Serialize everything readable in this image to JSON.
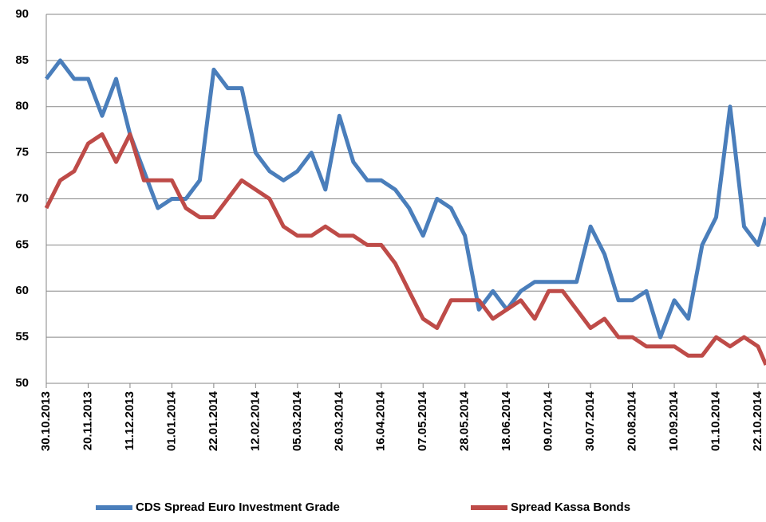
{
  "chart_data": {
    "type": "line",
    "x": [
      "30.10.2013",
      "06.11.2013",
      "13.11.2013",
      "20.11.2013",
      "27.11.2013",
      "04.12.2013",
      "11.12.2013",
      "18.12.2013",
      "25.12.2013",
      "01.01.2014",
      "08.01.2014",
      "15.01.2014",
      "22.01.2014",
      "29.01.2014",
      "05.02.2014",
      "12.02.2014",
      "19.02.2014",
      "26.02.2014",
      "05.03.2014",
      "12.03.2014",
      "19.03.2014",
      "26.03.2014",
      "02.04.2014",
      "09.04.2014",
      "16.04.2014",
      "23.04.2014",
      "30.04.2014",
      "07.05.2014",
      "14.05.2014",
      "21.05.2014",
      "28.05.2014",
      "04.06.2014",
      "11.06.2014",
      "18.06.2014",
      "25.06.2014",
      "02.07.2014",
      "09.07.2014",
      "16.07.2014",
      "23.07.2014",
      "30.07.2014",
      "06.08.2014",
      "13.08.2014",
      "20.08.2014",
      "27.08.2014",
      "03.09.2014",
      "10.09.2014",
      "17.09.2014",
      "24.09.2014",
      "01.10.2014",
      "08.10.2014",
      "15.10.2014",
      "22.10.2014",
      "26.10.2014"
    ],
    "series": [
      {
        "name": "CDS Spread Euro Investment Grade",
        "color": "#4a7ebb",
        "values": [
          83,
          85,
          83,
          83,
          79,
          83,
          77,
          73,
          69,
          70,
          70,
          72,
          84,
          82,
          82,
          75,
          73,
          72,
          73,
          75,
          71,
          79,
          74,
          72,
          72,
          71,
          69,
          66,
          70,
          69,
          66,
          58,
          60,
          58,
          60,
          61,
          61,
          61,
          61,
          67,
          64,
          59,
          59,
          60,
          55,
          59,
          57,
          65,
          68,
          80,
          67,
          65,
          68
        ]
      },
      {
        "name": "Spread Kassa Bonds",
        "color": "#be4b48",
        "values": [
          69,
          72,
          73,
          76,
          77,
          74,
          77,
          72,
          72,
          72,
          69,
          68,
          68,
          70,
          72,
          71,
          70,
          67,
          66,
          66,
          67,
          66,
          66,
          65,
          65,
          63,
          60,
          57,
          56,
          59,
          59,
          59,
          57,
          58,
          59,
          57,
          60,
          60,
          58,
          56,
          57,
          55,
          55,
          54,
          54,
          54,
          53,
          53,
          55,
          54,
          55,
          54,
          52
        ]
      }
    ],
    "xlim": [
      "30.10.2013",
      "26.10.2014"
    ],
    "xticks": [
      "30.10.2013",
      "20.11.2013",
      "11.12.2013",
      "01.01.2014",
      "22.01.2014",
      "12.02.2014",
      "05.03.2014",
      "26.03.2014",
      "16.04.2014",
      "07.05.2014",
      "28.05.2014",
      "18.06.2014",
      "09.07.2014",
      "30.07.2014",
      "20.08.2014",
      "10.09.2014",
      "01.10.2014",
      "22.10.2014"
    ],
    "ylim": [
      50,
      90
    ],
    "yticks": [
      50,
      55,
      60,
      65,
      70,
      75,
      80,
      85,
      90
    ],
    "grid": true,
    "legend": "bottom"
  }
}
